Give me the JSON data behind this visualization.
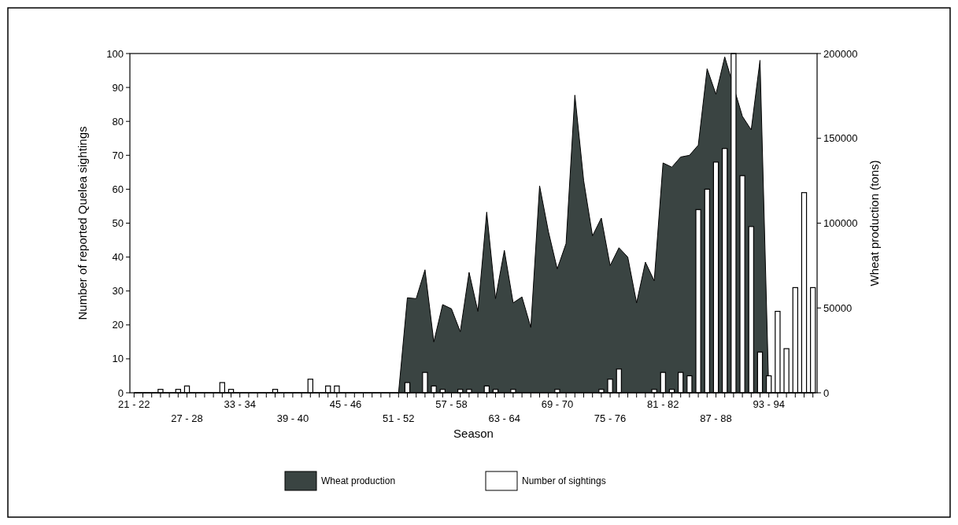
{
  "chart_data": {
    "type": "bar",
    "xlabel": "Season",
    "ylabel": "Number of reported Quelea sightings",
    "y2label": "Wheat production (tons)",
    "categories": [
      "21 - 22",
      null,
      null,
      null,
      null,
      null,
      "27 - 28",
      null,
      null,
      null,
      null,
      null,
      "33 - 34",
      null,
      null,
      null,
      null,
      null,
      "39 - 40",
      null,
      null,
      null,
      null,
      null,
      "45 - 46",
      null,
      null,
      null,
      null,
      null,
      "51 - 52",
      null,
      null,
      null,
      null,
      null,
      "57 - 58",
      null,
      null,
      null,
      null,
      null,
      "63 - 64",
      null,
      null,
      null,
      null,
      null,
      "69 - 70",
      null,
      null,
      null,
      null,
      null,
      "75 - 76",
      null,
      null,
      null,
      null,
      null,
      "81 - 82",
      null,
      null,
      null,
      null,
      null,
      "87 - 88",
      null,
      null,
      null,
      null,
      null,
      "93 - 94",
      null,
      null,
      null,
      null,
      null
    ],
    "series": [
      {
        "name": "Wheat production",
        "type": "area",
        "axis": "y2",
        "color": "#3a4442",
        "values": [
          0,
          0,
          0,
          0,
          0,
          0,
          0,
          0,
          0,
          0,
          0,
          0,
          0,
          0,
          0,
          0,
          0,
          0,
          0,
          0,
          0,
          0,
          0,
          0,
          0,
          0,
          0,
          0,
          0,
          0,
          0,
          56000,
          55500,
          72500,
          30000,
          52000,
          49500,
          36000,
          71000,
          48000,
          106500,
          55500,
          84000,
          53000,
          56500,
          38500,
          122000,
          95000,
          73000,
          88000,
          175500,
          125000,
          92500,
          103000,
          75000,
          85500,
          80000,
          53000,
          77000,
          66000,
          135500,
          133000,
          139000,
          140000,
          146000,
          191000,
          176000,
          198000,
          null,
          163000,
          155000,
          196000,
          0,
          0,
          0,
          0,
          0,
          0
        ]
      },
      {
        "name": "Number of sightings",
        "color": "#ffffff",
        "values": [
          0,
          0,
          0,
          1,
          0,
          1,
          2,
          0,
          0,
          0,
          3,
          1,
          0,
          0,
          0,
          0,
          1,
          0,
          0,
          0,
          4,
          0,
          2,
          2,
          0,
          0,
          0,
          0,
          0,
          0,
          0,
          3,
          0,
          6,
          2,
          1,
          0,
          1,
          1,
          0,
          2,
          1,
          0,
          1,
          0,
          0,
          0,
          0,
          1,
          0,
          0,
          0,
          0,
          1,
          4,
          7,
          0,
          0,
          0,
          1,
          6,
          1,
          6,
          5,
          54,
          60,
          68,
          72,
          100,
          64,
          49,
          12,
          5,
          24,
          13,
          31,
          59,
          31
        ]
      }
    ],
    "ylim": [
      0,
      100
    ],
    "yticks": [
      0,
      10,
      20,
      30,
      40,
      50,
      60,
      70,
      80,
      90,
      100
    ],
    "y2lim": [
      0,
      200000
    ],
    "y2ticks": [
      0,
      50000,
      100000,
      150000,
      200000
    ],
    "grid": false,
    "legend": "bottom"
  }
}
